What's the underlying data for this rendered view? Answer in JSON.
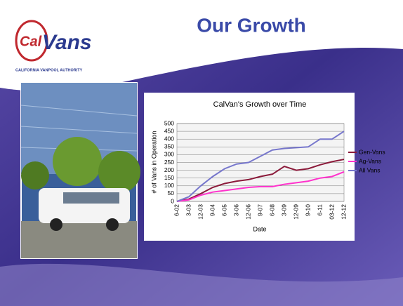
{
  "slide": {
    "title": "Our Growth",
    "logo_cal": "Cal",
    "logo_vans": "Vans",
    "logo_subtitle": "CALIFORNIA VANPOOL AUTHORITY"
  },
  "chart_data": {
    "type": "line",
    "title": "CalVan's Growth over Time",
    "x_label": "Date",
    "y_label": "# of Vans in Operation",
    "categories": [
      "6-02",
      "3-03",
      "12-03",
      "9-04",
      "6-05",
      "3-06",
      "12-06",
      "9-07",
      "6-08",
      "3-09",
      "12-09",
      "9-10",
      "6-11",
      "03-12",
      "12-12"
    ],
    "series": [
      {
        "name": "Gen-Vans",
        "color": "#8b1a3a",
        "values": [
          0,
          15,
          50,
          90,
          115,
          130,
          140,
          160,
          175,
          225,
          200,
          210,
          235,
          255,
          270
        ]
      },
      {
        "name": "Ag-Vans",
        "color": "#ff33cc",
        "values": [
          0,
          10,
          40,
          60,
          70,
          80,
          90,
          95,
          95,
          110,
          120,
          130,
          150,
          160,
          190
        ]
      },
      {
        "name": "All Vans",
        "color": "#7777cc",
        "values": [
          0,
          30,
          100,
          160,
          210,
          240,
          250,
          290,
          330,
          340,
          345,
          350,
          400,
          400,
          450
        ]
      }
    ],
    "ylim": [
      0,
      500
    ],
    "yticks": [
      0,
      50,
      100,
      150,
      200,
      250,
      300,
      350,
      400,
      450,
      500
    ],
    "grid": true,
    "legend": "right"
  }
}
